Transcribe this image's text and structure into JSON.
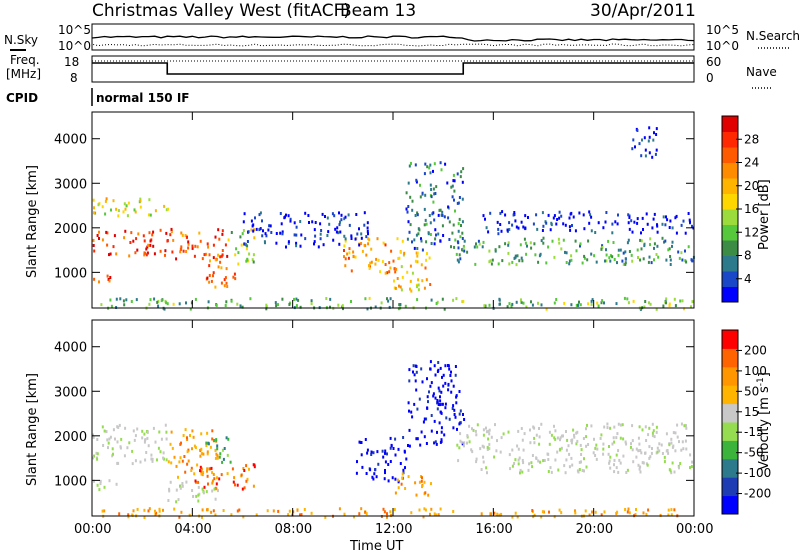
{
  "header": {
    "site": "Christmas Valley West (fitACF)",
    "beam": "Beam 13",
    "date": "30/Apr/2011"
  },
  "noise": {
    "label_left": "N.Sky",
    "label_right": "N.Search",
    "tick_top": "10^5",
    "tick_bottom": "10^0"
  },
  "freq": {
    "label_line1": "Freq.",
    "label_line2": "[MHz]",
    "left_ticks": [
      "18",
      "8"
    ],
    "right_ticks": [
      "60",
      "0"
    ],
    "nave_label": "Nave"
  },
  "cpid": {
    "label": "CPID",
    "mode": "normal 150 IF"
  },
  "time_axis": {
    "label": "Time UT",
    "ticks": [
      "00:00",
      "04:00",
      "08:00",
      "12:00",
      "16:00",
      "20:00",
      "00:00"
    ]
  },
  "chart_data": [
    {
      "type": "heatmap",
      "title": "Power",
      "ylabel": "Slant Range [km]",
      "y_ticks": [
        1000,
        2000,
        3000,
        4000
      ],
      "ylim": [
        200,
        4600
      ],
      "xlim_hours": [
        0,
        24
      ],
      "colorbar": {
        "label": "Power [dB]",
        "ticks": [
          "4",
          "8",
          "12",
          "16",
          "20",
          "24",
          "28"
        ],
        "colors": [
          "#0000ff",
          "#1a46c8",
          "#2d7a8c",
          "#3c8c46",
          "#55c83c",
          "#9bdc3c",
          "#ffd700",
          "#ffb400",
          "#ff8c00",
          "#ff5a00",
          "#ff2800",
          "#e10000"
        ]
      },
      "regions": [
        {
          "t": [
            0.0,
            3.0
          ],
          "r": [
            1400,
            2000
          ],
          "level": 0.88
        },
        {
          "t": [
            0.0,
            1.0
          ],
          "r": [
            800,
            1000
          ],
          "level": 0.85
        },
        {
          "t": [
            3.0,
            5.5
          ],
          "r": [
            1300,
            2000
          ],
          "level": 0.8
        },
        {
          "t": [
            4.5,
            5.8
          ],
          "r": [
            700,
            1400
          ],
          "level": 0.75
        },
        {
          "t": [
            0.0,
            3.0
          ],
          "r": [
            2300,
            2700
          ],
          "level": 0.5
        },
        {
          "t": [
            5.4,
            6.5
          ],
          "r": [
            1200,
            2000
          ],
          "level": 0.45
        },
        {
          "t": [
            10.0,
            12.5
          ],
          "r": [
            1000,
            1800
          ],
          "level": 0.7
        },
        {
          "t": [
            12.0,
            13.5
          ],
          "r": [
            600,
            1500
          ],
          "level": 0.6
        },
        {
          "t": [
            12.5,
            14.8
          ],
          "r": [
            1500,
            3500
          ],
          "level": 0.2
        },
        {
          "t": [
            14.5,
            24.0
          ],
          "r": [
            1200,
            1800
          ],
          "level": 0.3
        },
        {
          "t": [
            15.5,
            24.0
          ],
          "r": [
            1900,
            2400
          ],
          "level": 0.05
        },
        {
          "t": [
            6.0,
            11.0
          ],
          "r": [
            1600,
            2400
          ],
          "level": 0.05
        },
        {
          "t": [
            21.5,
            22.5
          ],
          "r": [
            3600,
            4400
          ],
          "level": 0.05
        },
        {
          "t": [
            0.0,
            24.0
          ],
          "r": [
            200,
            450
          ],
          "level": 0.35
        }
      ]
    },
    {
      "type": "heatmap",
      "title": "Velocity",
      "ylabel": "Slant Range [km]",
      "y_ticks": [
        1000,
        2000,
        3000,
        4000
      ],
      "ylim": [
        200,
        4600
      ],
      "xlim_hours": [
        0,
        24
      ],
      "colorbar": {
        "label": "Velocity [m s^-1]",
        "ticks": [
          "200",
          "100",
          "50",
          "15",
          "-15",
          "-50",
          "-100",
          "-200"
        ],
        "colors": [
          "#0000ff",
          "#1e3cb4",
          "#2d7a8c",
          "#3cb43c",
          "#96dc50",
          "#c8c8c8",
          "#ffb400",
          "#ff9600",
          "#ff6400",
          "#ff0000"
        ]
      },
      "regions": [
        {
          "t": [
            0.0,
            3.0
          ],
          "r": [
            1400,
            2300
          ],
          "class": "grey"
        },
        {
          "t": [
            0.0,
            1.0
          ],
          "r": [
            800,
            1100
          ],
          "class": "grey"
        },
        {
          "t": [
            3.0,
            5.0
          ],
          "r": [
            1100,
            2200
          ],
          "class": "orange"
        },
        {
          "t": [
            4.0,
            6.5
          ],
          "r": [
            800,
            1400
          ],
          "class": "red-orange"
        },
        {
          "t": [
            4.5,
            5.5
          ],
          "r": [
            1400,
            2000
          ],
          "class": "green"
        },
        {
          "t": [
            3.0,
            5.0
          ],
          "r": [
            500,
            1000
          ],
          "class": "grey"
        },
        {
          "t": [
            10.5,
            12.5
          ],
          "r": [
            1000,
            2000
          ],
          "class": "blue"
        },
        {
          "t": [
            12.5,
            14.8
          ],
          "r": [
            1800,
            3700
          ],
          "class": "blue"
        },
        {
          "t": [
            12.0,
            13.5
          ],
          "r": [
            700,
            1200
          ],
          "class": "orange"
        },
        {
          "t": [
            14.5,
            24.0
          ],
          "r": [
            1200,
            2300
          ],
          "class": "grey"
        },
        {
          "t": [
            0.0,
            24.0
          ],
          "r": [
            200,
            400
          ],
          "class": "orange"
        }
      ]
    }
  ]
}
